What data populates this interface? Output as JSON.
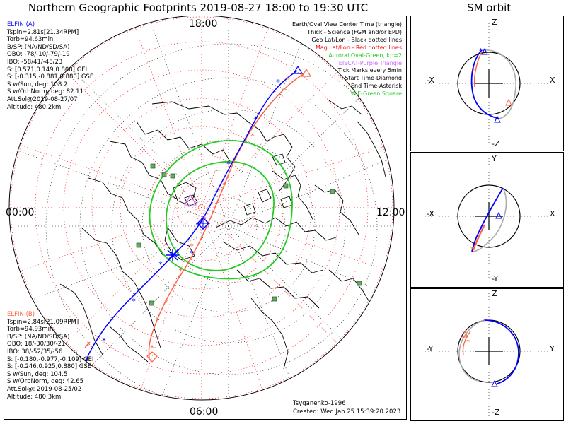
{
  "title": "Northern Geographic Footprints 2019-08-27 18:00 to 19:30 UTC",
  "sm_title": "SM orbit",
  "clock_labels": {
    "top": "18:00",
    "left": "00:00",
    "right": "12:00",
    "bottom": "06:00"
  },
  "elfin_a": {
    "color": "#0000ff",
    "lines": [
      "ELFIN (A)",
      "Tspin=2.81s[21.34RPM]",
      "Torb=94.63min",
      "B/SP: (NA/ND/SD/SA)",
      "OBO: -78/-10/-79/-19",
      "IBO: -58/41/-48/23",
      "S: [0.571,0.149,0.808] GEI",
      "S: [-0.315,-0.881,0.880] GSE",
      "S w/Sun, deg: 108.2",
      "S w/OrbNorm, deg: 82.11",
      "Att.Sol@2019-08-27/07",
      "Altitude: 480.2km"
    ]
  },
  "elfin_b": {
    "color": "#ff6040",
    "lines": [
      "ELFIN (B)",
      "Tspin=2.84s[21.09RPM]",
      "Torb=94.93min",
      "B/SP: (NA/ND/SD/SA)",
      "OBO: 18/-30/30/-21",
      "IBO: 38/-52/35/-56",
      "S: [-0.180,-0.977,-0.109] GEI",
      "S: [-0.246,0.925,0.880] GSE",
      "S w/Sun, deg: 104.5",
      "S w/OrbNorm, deg: 42.65",
      "Att.Sol@: 2019-08-25/02",
      "Altitude: 480.3km"
    ]
  },
  "legend": [
    {
      "text": "Earth/Oval View Center Time (triangle)",
      "color": "#000000"
    },
    {
      "text": "Thick - Science (FGM and/or EPD)",
      "color": "#000000"
    },
    {
      "text": "Geo Lat/Lon - Black dotted lines",
      "color": "#000000"
    },
    {
      "text": "Mag Lat/Lon - Red dotted lines",
      "color": "#ff0000"
    },
    {
      "text": "Auroral Oval-Green, kp=2",
      "color": "#22cc22"
    },
    {
      "text": "EISCAT-Purple Triangle",
      "color": "#cc66ff"
    },
    {
      "text": "Tick Marks every 5min",
      "color": "#000000"
    },
    {
      "text": "Start Time-Diamond",
      "color": "#000000"
    },
    {
      "text": "End Time-Asterisk",
      "color": "#000000"
    },
    {
      "text": "VLF-Green Square",
      "color": "#22cc22"
    }
  ],
  "credit": "Tsyganenko-1996",
  "created": "Created: Wed Jan 25 15:39:20 2023",
  "panels": [
    {
      "id": "xz",
      "top": "Z",
      "bottom": "-Z",
      "left": "-X",
      "right": "X"
    },
    {
      "id": "xy",
      "top": "Y",
      "bottom": "-Y",
      "left": "-X",
      "right": "X"
    },
    {
      "id": "yz",
      "top": "Z",
      "bottom": "-Z",
      "left": "-Y",
      "right": "Y"
    }
  ],
  "colors": {
    "elfin_a": "#0000ff",
    "elfin_b": "#ff6040",
    "aurora": "#22cc22",
    "mag_grid": "#ff0000",
    "geo_grid": "#000000",
    "orbit_gray": "#aaaaaa"
  },
  "icons": [
    "start-diamond-icon",
    "end-asterisk-icon",
    "view-center-triangle-icon",
    "vlf-square-icon"
  ]
}
